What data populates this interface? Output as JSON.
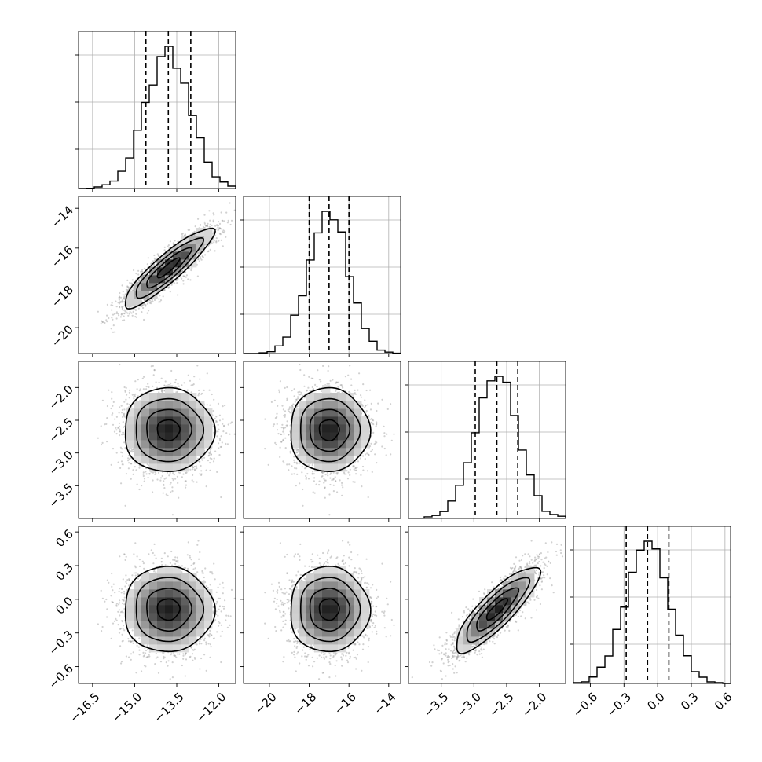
{
  "chart_data": {
    "type": "corner",
    "title": "",
    "grid": true,
    "parameters": [
      {
        "index": 0,
        "mean": -13.8,
        "sd": 0.8,
        "range": [
          -17.0,
          -11.4
        ],
        "ticks": [
          -16.5,
          -15.0,
          -13.5,
          -12.0
        ],
        "tick_labels": [
          "−16.5",
          "−15.0",
          "−13.5",
          "−12.0"
        ],
        "quantiles": [
          -14.6,
          -13.8,
          -13.0
        ]
      },
      {
        "index": 1,
        "mean": -17.0,
        "sd": 1.0,
        "range": [
          -21.3,
          -13.4
        ],
        "ticks": [
          -20,
          -18,
          -16,
          -14
        ],
        "tick_labels": [
          "−20",
          "−18",
          "−16",
          "−14"
        ],
        "quantiles": [
          -18.0,
          -17.0,
          -16.0
        ]
      },
      {
        "index": 2,
        "mean": -2.65,
        "sd": 0.32,
        "range": [
          -4.0,
          -1.6
        ],
        "ticks": [
          -3.5,
          -3.0,
          -2.5,
          -2.0
        ],
        "tick_labels": [
          "−3.5",
          "−3.0",
          "−2.5",
          "−2.0"
        ],
        "quantiles": [
          -2.98,
          -2.65,
          -2.33
        ]
      },
      {
        "index": 3,
        "mean": -0.09,
        "sd": 0.19,
        "range": [
          -0.75,
          0.65
        ],
        "ticks": [
          -0.6,
          -0.3,
          0.0,
          0.3,
          0.6
        ],
        "tick_labels": [
          "−0.6",
          "−0.3",
          "0.0",
          "0.3",
          "0.6"
        ],
        "quantiles": [
          -0.28,
          -0.09,
          0.1
        ]
      }
    ],
    "correlations": [
      [
        0,
        1,
        0.9
      ],
      [
        0,
        2,
        0.0
      ],
      [
        1,
        2,
        0.0
      ],
      [
        0,
        3,
        0.0
      ],
      [
        1,
        3,
        0.0
      ],
      [
        2,
        3,
        0.85
      ]
    ],
    "histogram_bins": 20,
    "contour_levels_sigma": [
      0.5,
      1.0,
      1.5,
      2.0
    ],
    "n_samples": 5000
  }
}
